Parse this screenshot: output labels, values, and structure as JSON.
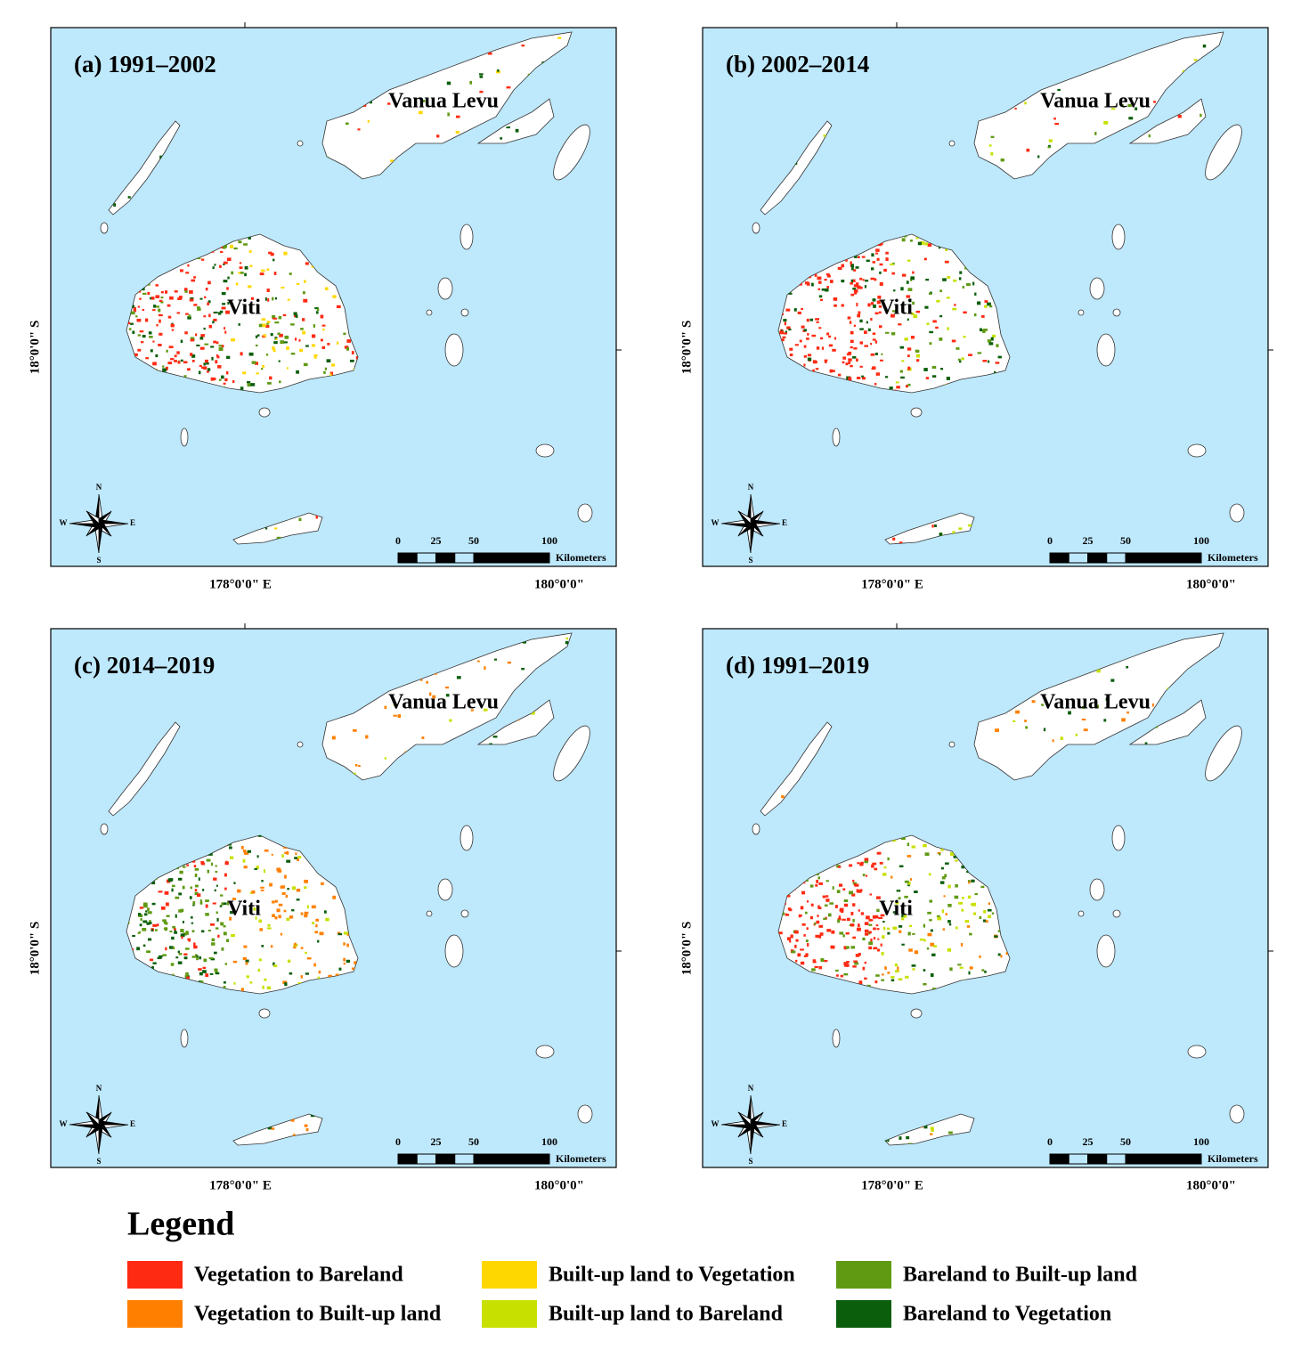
{
  "panels": [
    {
      "title": "(a) 1991–2002"
    },
    {
      "title": "(b) 2002–2014"
    },
    {
      "title": "(c) 2014–2019"
    },
    {
      "title": "(d) 1991–2019"
    }
  ],
  "place_labels": [
    "Vanua Levu",
    "Viti"
  ],
  "axes": {
    "lat_label": "18°0'0\" S",
    "lon_labels": [
      "178°0'0\" E",
      "180°0'0\""
    ]
  },
  "scale_bar": {
    "ticks": [
      "0",
      "25",
      "50",
      "100"
    ],
    "unit": "Kilometers"
  },
  "compass": {
    "n": "N",
    "w": "W",
    "e": "E",
    "s": "S"
  },
  "legend": {
    "title": "Legend",
    "items": [
      {
        "label": "Vegetation to Bareland",
        "color": "#ff2a12"
      },
      {
        "label": "Vegetation to Built-up land",
        "color": "#ff8000"
      },
      {
        "label": "Built-up land to Vegetation",
        "color": "#ffd700"
      },
      {
        "label": "Built-up land to Bareland",
        "color": "#c8e000"
      },
      {
        "label": "Bareland to Built-up land",
        "color": "#5f9a12"
      },
      {
        "label": "Bareland to Vegetation",
        "color": "#0b5e0b"
      }
    ]
  }
}
